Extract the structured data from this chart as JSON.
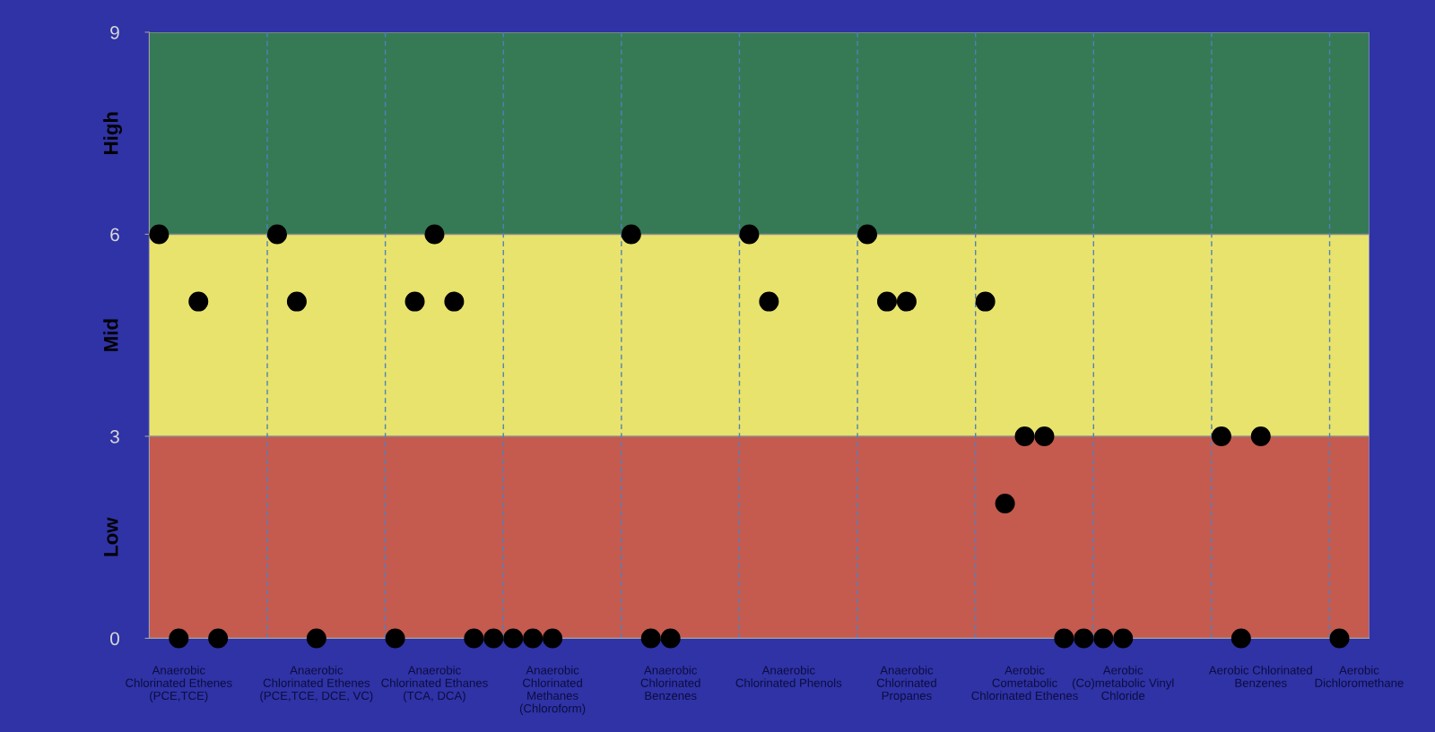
{
  "chart_data": {
    "type": "scatter",
    "marker": "circle",
    "grid": "y",
    "legend": false,
    "categories": [
      null,
      "Anaerobic\nChlorinated Ethenes\n(PCE,TCE)",
      null,
      null,
      null,
      null,
      null,
      null,
      "Anaerobic\nChlorinated Ethenes\n(PCE,TCE, DCE, VC)",
      null,
      null,
      null,
      null,
      null,
      "Anaerobic\nChlorinated Ethanes\n(TCA, DCA)",
      null,
      null,
      null,
      null,
      null,
      "Anaerobic\nChlorinated\nMethanes\n(Chloroform)",
      null,
      null,
      null,
      null,
      null,
      "Anaerobic\nChlorinated\nBenzenes",
      null,
      null,
      null,
      null,
      null,
      "Anaerobic\nChlorinated Phenols",
      null,
      null,
      null,
      null,
      null,
      "Anaerobic\nChlorinated\nPropanes",
      null,
      null,
      null,
      null,
      null,
      "Aerobic\nCometabolic\nChlorinated Ethenes",
      null,
      null,
      null,
      null,
      "Aerobic\n(Co)metabolic Vinyl\nChloride",
      null,
      null,
      null,
      null,
      null,
      null,
      "Aerobic Chlorinated\nBenzenes",
      null,
      null,
      null,
      null,
      "Aerobic\nDichloromethane"
    ],
    "series": [
      {
        "color": "#000000",
        "values": [
          6,
          0,
          5,
          0,
          null,
          null,
          6,
          5,
          0,
          null,
          null,
          null,
          0,
          5,
          6,
          5,
          0,
          0,
          0,
          0,
          0,
          null,
          null,
          null,
          6,
          0,
          0,
          null,
          null,
          null,
          6,
          5,
          null,
          null,
          null,
          null,
          6,
          5,
          5,
          null,
          null,
          null,
          5,
          2,
          3,
          3,
          0,
          0,
          0,
          0,
          null,
          null,
          null,
          null,
          3,
          0,
          3,
          null,
          null,
          null,
          0,
          null
        ]
      }
    ],
    "ylim": [
      0,
      9
    ],
    "yticks": [
      0,
      3,
      6,
      9
    ],
    "bands": [
      {
        "axis": "y",
        "from": 0,
        "to": 3,
        "label": "Low",
        "color": "#c55a4f"
      },
      {
        "axis": "y",
        "from": 3,
        "to": 6,
        "label": "Mid",
        "color": "#e8e36c"
      },
      {
        "axis": "y",
        "from": 6,
        "to": 9,
        "label": "High",
        "color": "#357a55"
      }
    ]
  }
}
